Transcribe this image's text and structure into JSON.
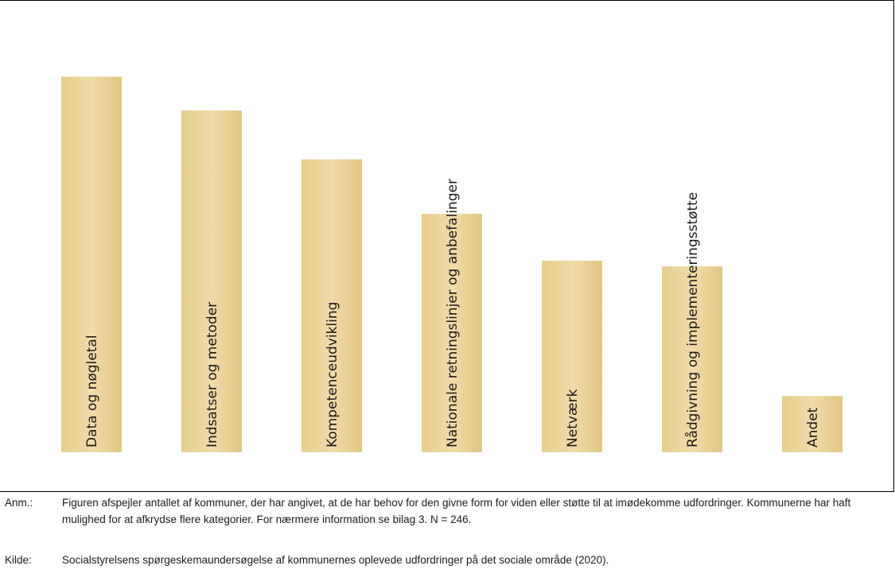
{
  "chart_data": {
    "type": "bar",
    "categories": [
      "Data og nøgletal",
      "Indsatser og metoder",
      "Kompetenceudvikling",
      "Nationale retningslinjer og anbefalinger",
      "Netværk",
      "Rådgivning og implementeringsstøtte",
      "Andet"
    ],
    "values": [
      200,
      182,
      156,
      127,
      102,
      99,
      30
    ],
    "ylim": [
      0,
      240
    ],
    "title": "",
    "xlabel": "",
    "ylabel": "",
    "grid": false,
    "bar_color": "#e9d398"
  },
  "notes": {
    "anm_tag": "Anm.:",
    "anm_text": "Figuren afspejler antallet af kommuner, der har angivet, at de har behov for den givne form for viden eller støtte til at imødekomme udfordringer. Kommunerne har haft mulighed for at afkrydse flere kategorier. For nærmere information se bilag 3. N = 246.",
    "kilde_tag": "Kilde:",
    "kilde_text": "Socialstyrelsens spørgeskemaundersøgelse af kommunernes oplevede udfordringer på det sociale område (2020)."
  }
}
